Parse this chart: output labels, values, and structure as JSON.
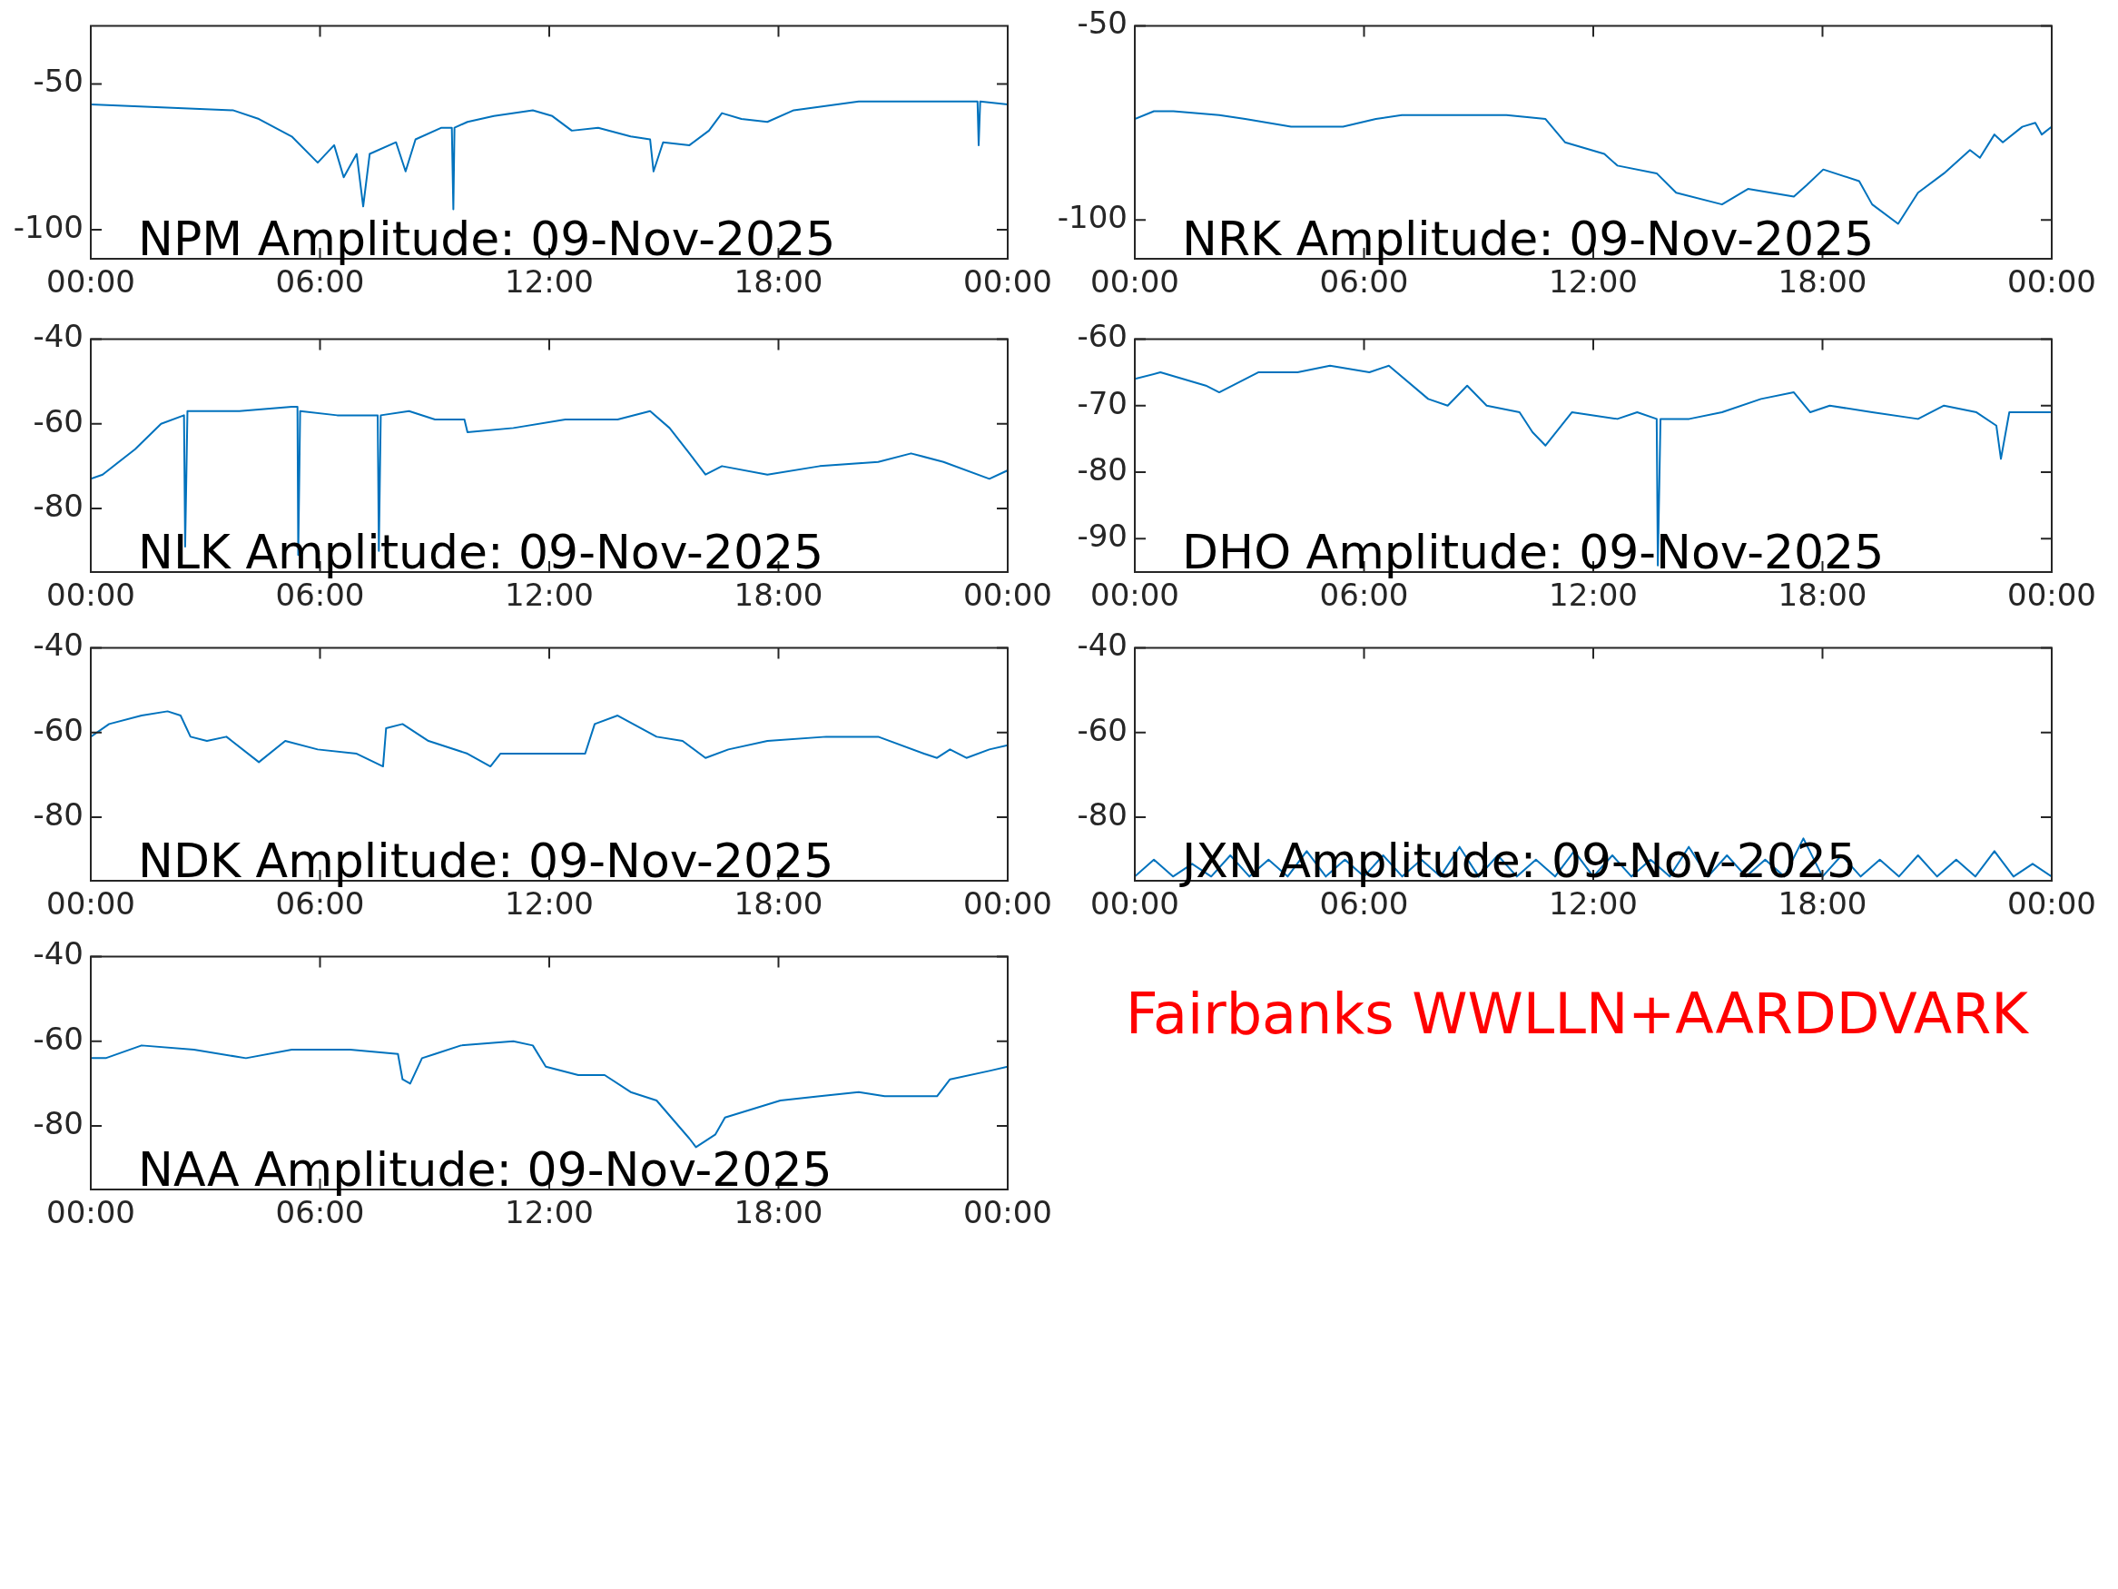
{
  "chart_data": [
    {
      "type": "line",
      "title": "NPM Amplitude: 09-Nov-2025",
      "color": "#0072bd",
      "xlim": [
        0,
        24
      ],
      "xticks": [
        {
          "value": 0,
          "label": "00:00"
        },
        {
          "value": 6,
          "label": "06:00"
        },
        {
          "value": 12,
          "label": "12:00"
        },
        {
          "value": 18,
          "label": "18:00"
        },
        {
          "value": 24,
          "label": "00:00"
        }
      ],
      "ylim": [
        -110,
        -30
      ],
      "yticks": [
        -100,
        -50
      ],
      "x": [
        0,
        3.72,
        4.4,
        5.26,
        5.94,
        6.37,
        6.62,
        6.96,
        7.13,
        7.3,
        7.99,
        8.24,
        8.5,
        9.18,
        9.45,
        9.49,
        9.52,
        9.86,
        10.55,
        11.57,
        12.08,
        12.59,
        13.28,
        14.13,
        14.64,
        14.73,
        14.98,
        15.67,
        16.18,
        16.52,
        17.03,
        17.71,
        18.4,
        20.1,
        22.49,
        23.21,
        23.24,
        23.28,
        24
      ],
      "values": [
        -57,
        -59,
        -62,
        -68,
        -77,
        -71,
        -82,
        -74,
        -92,
        -74,
        -70,
        -80,
        -69,
        -65,
        -65,
        -93,
        -65,
        -63,
        -61,
        -59,
        -61,
        -66,
        -65,
        -68,
        -69,
        -80,
        -70,
        -71,
        -66,
        -60,
        -62,
        -63,
        -59,
        -56,
        -56,
        -56,
        -71,
        -56,
        -57
      ]
    },
    {
      "type": "line",
      "title": "NRK Amplitude: 09-Nov-2025",
      "color": "#0072bd",
      "xlim": [
        0,
        24
      ],
      "xticks": [
        {
          "value": 0,
          "label": "00:00"
        },
        {
          "value": 6,
          "label": "06:00"
        },
        {
          "value": 12,
          "label": "12:00"
        },
        {
          "value": 18,
          "label": "18:00"
        },
        {
          "value": 24,
          "label": "00:00"
        }
      ],
      "ylim": [
        -110,
        -50
      ],
      "yticks": [
        -100,
        -50
      ],
      "x": [
        0,
        0.5,
        1.01,
        2.21,
        2.89,
        4.09,
        5.45,
        6.31,
        6.99,
        8.36,
        9.73,
        10.75,
        11.26,
        12.29,
        12.63,
        13.66,
        14.17,
        15.37,
        16.05,
        17.25,
        17.59,
        18.02,
        18.96,
        19.3,
        19.98,
        20.5,
        21.18,
        21.86,
        22.12,
        22.5,
        22.72,
        23.23,
        23.57,
        23.74,
        24
      ],
      "values": [
        -74,
        -72,
        -72,
        -73,
        -74,
        -76,
        -76,
        -74,
        -73,
        -73,
        -73,
        -74,
        -80,
        -83,
        -86,
        -88,
        -93,
        -96,
        -92,
        -94,
        -91,
        -87,
        -90,
        -96,
        -101,
        -93,
        -88,
        -82,
        -84,
        -78,
        -80,
        -76,
        -75,
        -78,
        -76
      ]
    },
    {
      "type": "line",
      "title": "NLK Amplitude: 09-Nov-2025",
      "color": "#0072bd",
      "xlim": [
        0,
        24
      ],
      "xticks": [
        {
          "value": 0,
          "label": "00:00"
        },
        {
          "value": 6,
          "label": "06:00"
        },
        {
          "value": 12,
          "label": "12:00"
        },
        {
          "value": 18,
          "label": "18:00"
        },
        {
          "value": 24,
          "label": "00:00"
        }
      ],
      "ylim": [
        -95,
        -40
      ],
      "yticks": [
        -40,
        -60,
        -80
      ],
      "x": [
        0,
        0.31,
        1.16,
        1.84,
        2.44,
        2.47,
        2.53,
        3.89,
        5.26,
        5.41,
        5.43,
        5.48,
        6.45,
        7.51,
        7.54,
        7.59,
        8.33,
        9.01,
        9.78,
        9.86,
        11.06,
        12.42,
        13.79,
        14.64,
        15.15,
        15.67,
        16.09,
        16.52,
        17.71,
        19.08,
        20.61,
        21.47,
        22.32,
        23.52,
        24
      ],
      "values": [
        -73,
        -72,
        -66,
        -60,
        -58,
        -89,
        -57,
        -57,
        -56,
        -56,
        -91,
        -57,
        -58,
        -58,
        -90,
        -58,
        -57,
        -59,
        -59,
        -62,
        -61,
        -59,
        -59,
        -57,
        -61,
        -67,
        -72,
        -70,
        -72,
        -70,
        -69,
        -67,
        -69,
        -73,
        -71
      ]
    },
    {
      "type": "line",
      "title": "DHO Amplitude: 09-Nov-2025",
      "color": "#0072bd",
      "xlim": [
        0,
        24
      ],
      "xticks": [
        {
          "value": 0,
          "label": "00:00"
        },
        {
          "value": 6,
          "label": "06:00"
        },
        {
          "value": 12,
          "label": "12:00"
        },
        {
          "value": 18,
          "label": "18:00"
        },
        {
          "value": 24,
          "label": "00:00"
        }
      ],
      "ylim": [
        -95,
        -60
      ],
      "yticks": [
        -60,
        -70,
        -80,
        -90
      ],
      "x": [
        0,
        0.67,
        1.86,
        2.21,
        3.23,
        4.26,
        5.11,
        6.14,
        6.65,
        7.68,
        8.19,
        8.7,
        9.21,
        10.07,
        10.41,
        10.75,
        11.44,
        12.63,
        13.15,
        13.66,
        13.69,
        13.76,
        14.51,
        15.37,
        16.39,
        17.25,
        17.68,
        18.19,
        19.3,
        20.5,
        21.18,
        22.03,
        22.55,
        22.67,
        22.89,
        23.4,
        24
      ],
      "values": [
        -66,
        -65,
        -67,
        -68,
        -65,
        -65,
        -64,
        -65,
        -64,
        -69,
        -70,
        -67,
        -70,
        -71,
        -74,
        -76,
        -71,
        -72,
        -71,
        -72,
        -94,
        -72,
        -72,
        -71,
        -69,
        -68,
        -71,
        -70,
        -71,
        -72,
        -70,
        -71,
        -73,
        -78,
        -71,
        -71,
        -71
      ]
    },
    {
      "type": "line",
      "title": "NDK Amplitude: 09-Nov-2025",
      "color": "#0072bd",
      "xlim": [
        0,
        24
      ],
      "xticks": [
        {
          "value": 0,
          "label": "00:00"
        },
        {
          "value": 6,
          "label": "06:00"
        },
        {
          "value": 12,
          "label": "12:00"
        },
        {
          "value": 18,
          "label": "18:00"
        },
        {
          "value": 24,
          "label": "00:00"
        }
      ],
      "ylim": [
        -95,
        -40
      ],
      "yticks": [
        -40,
        -60,
        -80
      ],
      "x": [
        0,
        0.48,
        1.33,
        2.01,
        2.35,
        2.61,
        3.04,
        3.55,
        4.4,
        5.09,
        5.94,
        6.96,
        7.65,
        7.73,
        8.16,
        8.84,
        9.86,
        10.46,
        10.72,
        11.91,
        12.94,
        13.19,
        13.79,
        14.81,
        15.49,
        16.09,
        16.69,
        17.71,
        19.25,
        20.61,
        21.81,
        22.15,
        22.49,
        22.92,
        23.52,
        24
      ],
      "values": [
        -61,
        -58,
        -56,
        -55,
        -56,
        -61,
        -62,
        -61,
        -67,
        -62,
        -64,
        -65,
        -68,
        -59,
        -58,
        -62,
        -65,
        -68,
        -65,
        -65,
        -65,
        -58,
        -56,
        -61,
        -62,
        -66,
        -64,
        -62,
        -61,
        -61,
        -65,
        -66,
        -64,
        -66,
        -64,
        -63
      ]
    },
    {
      "type": "line",
      "title": "JXN Amplitude: 09-Nov-2025",
      "color": "#0072bd",
      "xlim": [
        0,
        24
      ],
      "xticks": [
        {
          "value": 0,
          "label": "00:00"
        },
        {
          "value": 6,
          "label": "06:00"
        },
        {
          "value": 12,
          "label": "12:00"
        },
        {
          "value": 18,
          "label": "18:00"
        },
        {
          "value": 24,
          "label": "00:00"
        }
      ],
      "ylim": [
        -95,
        -40
      ],
      "yticks": [
        -40,
        -60,
        -80
      ],
      "x": [
        0,
        0.5,
        1,
        1.5,
        2,
        2.5,
        3,
        3.5,
        4,
        4.5,
        5,
        5.5,
        6,
        6.5,
        7,
        7.5,
        8,
        8.5,
        9,
        9.5,
        10,
        10.5,
        11,
        11.5,
        12,
        12.5,
        13,
        13.5,
        14,
        14.5,
        15,
        15.5,
        16,
        16.5,
        17,
        17.5,
        18,
        18.5,
        19,
        19.5,
        20,
        20.5,
        21,
        21.5,
        22,
        22.5,
        23,
        23.5,
        24
      ],
      "values": [
        -94,
        -90,
        -94,
        -91,
        -94,
        -89,
        -94,
        -90,
        -94,
        -88,
        -94,
        -90,
        -94,
        -89,
        -94,
        -90,
        -94,
        -87,
        -94,
        -89,
        -94,
        -90,
        -94,
        -88,
        -94,
        -89,
        -94,
        -90,
        -94,
        -87,
        -94,
        -89,
        -94,
        -90,
        -94,
        -85,
        -94,
        -89,
        -94,
        -90,
        -94,
        -89,
        -94,
        -90,
        -94,
        -88,
        -94,
        -91,
        -94
      ]
    },
    {
      "type": "line",
      "title": "NAA Amplitude: 09-Nov-2025",
      "color": "#0072bd",
      "xlim": [
        0,
        24
      ],
      "xticks": [
        {
          "value": 0,
          "label": "00:00"
        },
        {
          "value": 6,
          "label": "06:00"
        },
        {
          "value": 12,
          "label": "12:00"
        },
        {
          "value": 18,
          "label": "18:00"
        },
        {
          "value": 24,
          "label": "00:00"
        }
      ],
      "ylim": [
        -95,
        -40
      ],
      "yticks": [
        -40,
        -60,
        -80
      ],
      "x": [
        0,
        0.39,
        1.33,
        2.7,
        4.06,
        5.26,
        6.79,
        8.04,
        8.16,
        8.36,
        8.67,
        9.01,
        9.69,
        11.06,
        11.57,
        11.91,
        12.76,
        13.45,
        14.13,
        14.81,
        15.67,
        15.84,
        16.35,
        16.6,
        18.05,
        19.08,
        20.1,
        20.78,
        22.15,
        22.49,
        23.52,
        24
      ],
      "values": [
        -64,
        -64,
        -61,
        -62,
        -64,
        -62,
        -62,
        -63,
        -69,
        -70,
        -64,
        -63,
        -61,
        -60,
        -61,
        -66,
        -68,
        -68,
        -72,
        -74,
        -83,
        -85,
        -82,
        -78,
        -74,
        -73,
        -72,
        -73,
        -73,
        -69,
        -67,
        -66
      ]
    },
    {
      "type": "other",
      "title": "Fairbanks WWLLN+AARDDVARK",
      "color": "#ff0000"
    }
  ]
}
